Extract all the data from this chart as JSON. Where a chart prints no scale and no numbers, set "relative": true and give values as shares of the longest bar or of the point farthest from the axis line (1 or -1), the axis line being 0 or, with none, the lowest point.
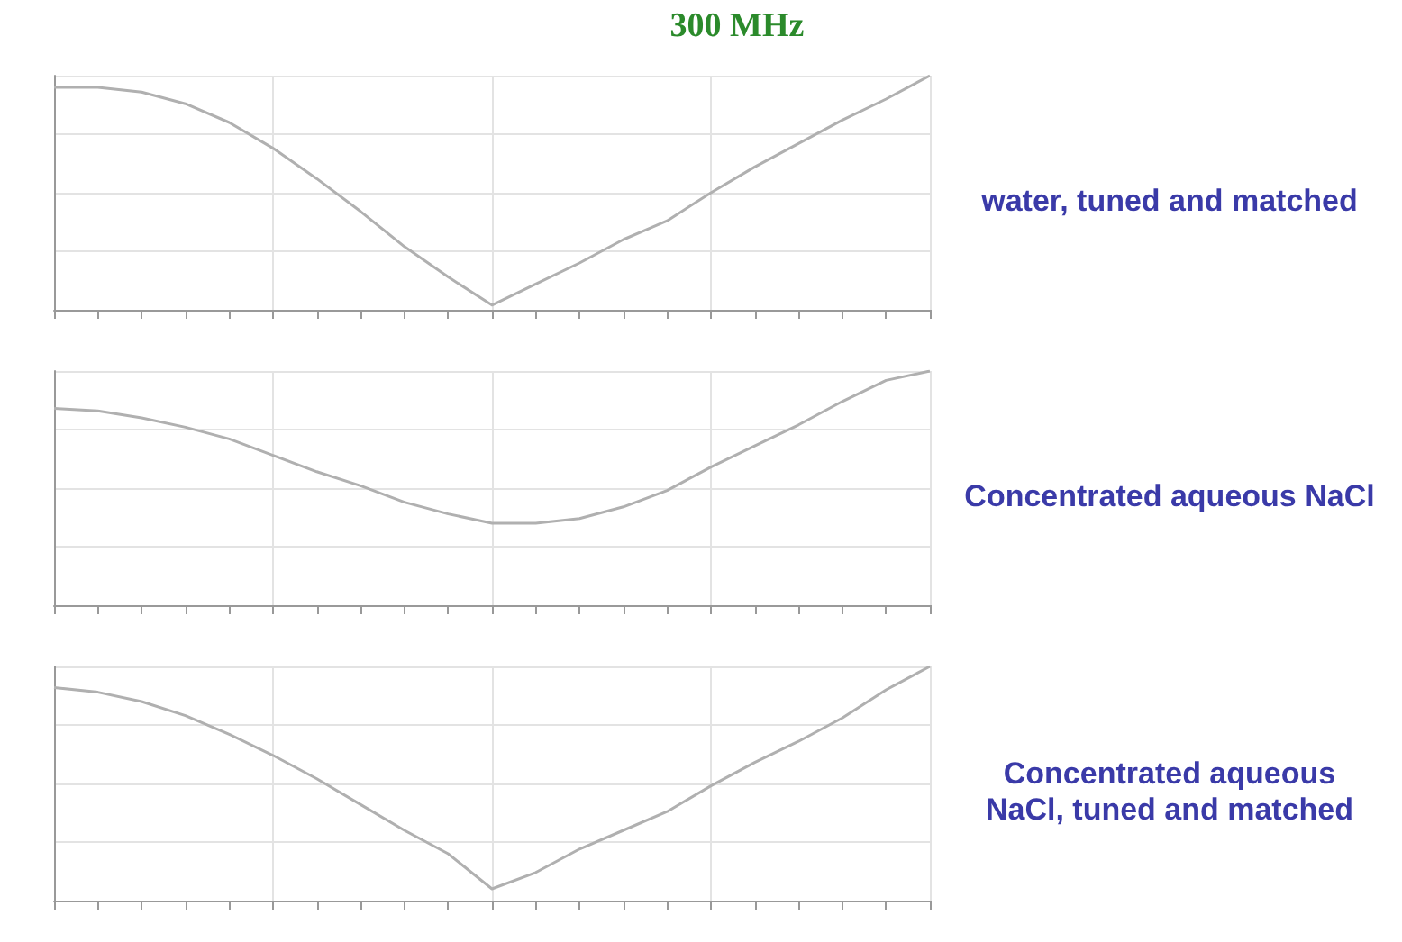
{
  "chart_data": [
    {
      "type": "line",
      "title": "300 MHz",
      "relative": true,
      "grid": true,
      "marker": "none",
      "annotations": [
        "water, tuned and matched"
      ],
      "categories": [
        null,
        null,
        null,
        null,
        null,
        null,
        null,
        null,
        null,
        null,
        null,
        null,
        null,
        null,
        null,
        null,
        null,
        null,
        null,
        null,
        null
      ],
      "series": [
        {
          "color": "#b0b0b0",
          "values": [
            0.95,
            0.95,
            0.93,
            0.88,
            0.8,
            0.69,
            0.56,
            0.42,
            0.27,
            0.14,
            0.02,
            0.11,
            0.2,
            0.3,
            0.38,
            0.5,
            0.61,
            0.71,
            0.81,
            0.9,
            1
          ]
        }
      ]
    },
    {
      "type": "line",
      "relative": true,
      "grid": true,
      "marker": "none",
      "annotations": [
        "Concentrated aqueous NaCl"
      ],
      "categories": [
        null,
        null,
        null,
        null,
        null,
        null,
        null,
        null,
        null,
        null,
        null,
        null,
        null,
        null,
        null,
        null,
        null,
        null,
        null,
        null,
        null
      ],
      "series": [
        {
          "color": "#b0b0b0",
          "values": [
            0.84,
            0.83,
            0.8,
            0.76,
            0.71,
            0.64,
            0.57,
            0.51,
            0.44,
            0.39,
            0.35,
            0.35,
            0.37,
            0.42,
            0.49,
            0.59,
            0.68,
            0.77,
            0.87,
            0.96,
            1
          ]
        }
      ]
    },
    {
      "type": "line",
      "relative": true,
      "grid": true,
      "marker": "none",
      "annotations": [
        "Concentrated aqueous NaCl, tuned and matched"
      ],
      "categories": [
        null,
        null,
        null,
        null,
        null,
        null,
        null,
        null,
        null,
        null,
        null,
        null,
        null,
        null,
        null,
        null,
        null,
        null,
        null,
        null,
        null
      ],
      "series": [
        {
          "color": "#b0b0b0",
          "values": [
            0.91,
            0.89,
            0.85,
            0.79,
            0.71,
            0.62,
            0.52,
            0.41,
            0.3,
            0.2,
            0.05,
            0.12,
            0.22,
            0.3,
            0.38,
            0.49,
            0.59,
            0.68,
            0.78,
            0.9,
            1
          ]
        }
      ]
    }
  ]
}
